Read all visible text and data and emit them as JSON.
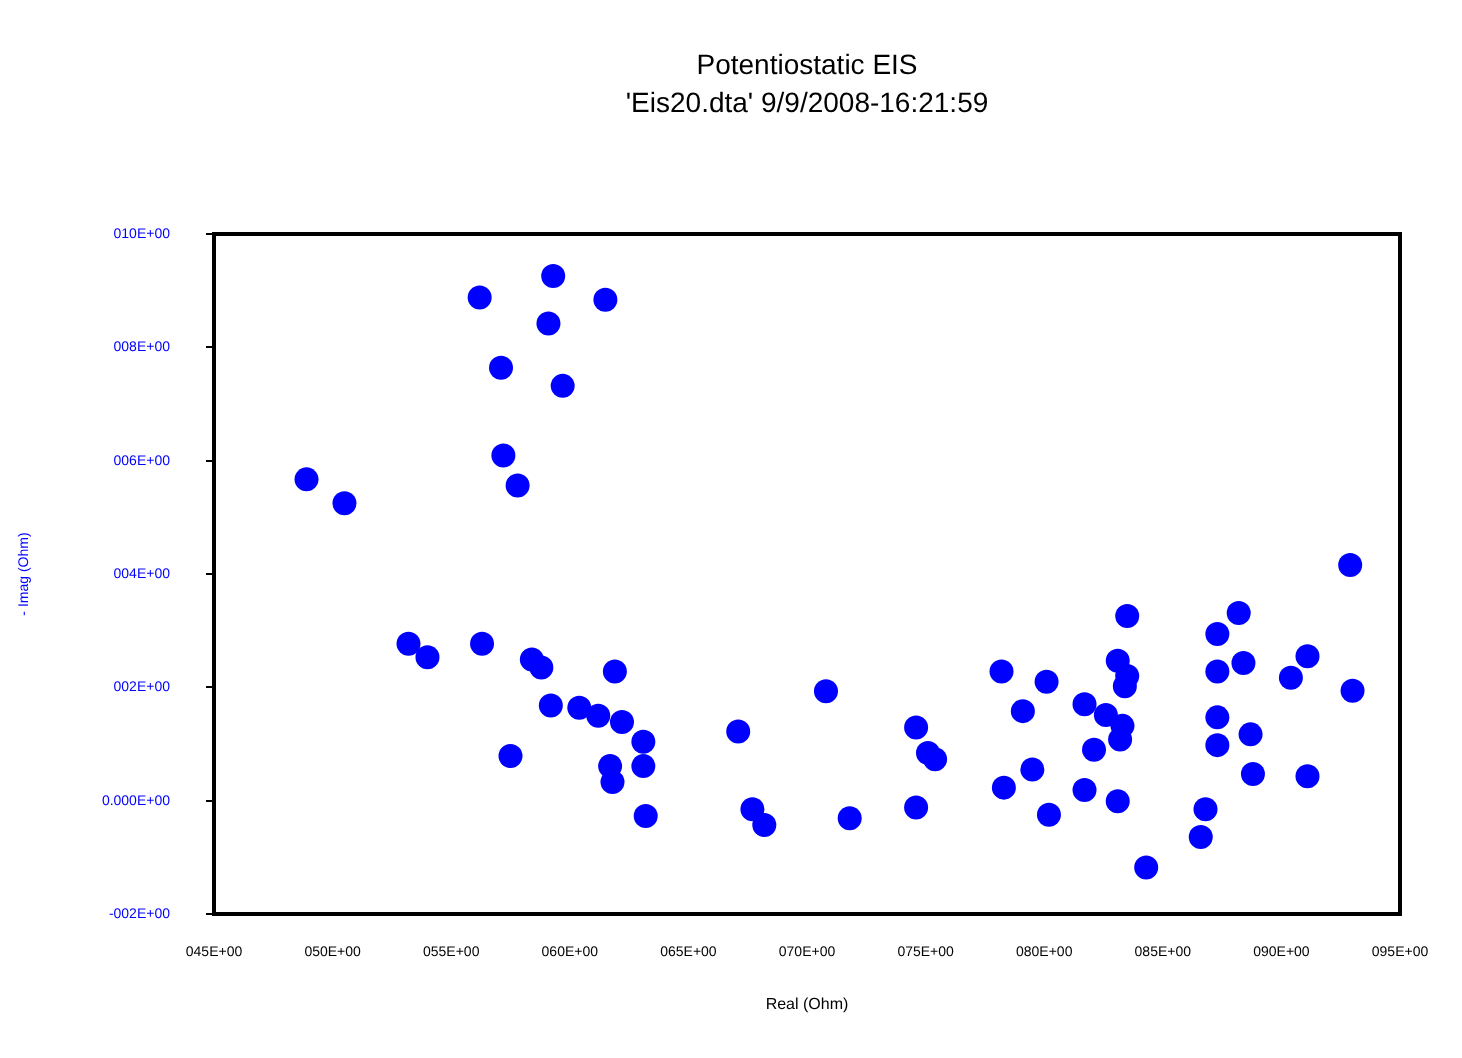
{
  "chart_data": {
    "type": "scatter",
    "title": "Potentiostatic EIS",
    "subtitle": "'Eis20.dta' 9/9/2008-16:21:59",
    "xlabel": "Real (Ohm)",
    "ylabel": "- Imag (Ohm)",
    "x": [
      48.9,
      50.5,
      53.2,
      54.0,
      56.2,
      56.3,
      57.1,
      57.2,
      57.8,
      57.5,
      59.3,
      59.1,
      59.7,
      61.5,
      58.4,
      58.8,
      59.2,
      60.4,
      61.2,
      62.2,
      61.9,
      63.1,
      63.1,
      61.7,
      61.8,
      63.2,
      67.1,
      67.7,
      68.2,
      71.8,
      70.8,
      74.6,
      75.1,
      75.4,
      74.6,
      78.2,
      79.1,
      80.1,
      79.5,
      78.3,
      80.2,
      81.7,
      82.6,
      83.3,
      83.2,
      82.1,
      81.7,
      83.1,
      83.5,
      83.1,
      83.5,
      83.4,
      84.3,
      86.6,
      86.8,
      87.3,
      87.3,
      87.3,
      87.3,
      88.2,
      88.4,
      88.7,
      88.8,
      90.4,
      91.1,
      91.1,
      92.9,
      93.0
    ],
    "series": [
      {
        "color": "#0000ff",
        "values": [
          5.67,
          5.25,
          2.77,
          2.53,
          8.88,
          2.77,
          7.64,
          6.09,
          5.56,
          0.79,
          9.26,
          8.42,
          7.32,
          8.84,
          2.49,
          2.35,
          1.68,
          1.64,
          1.5,
          1.39,
          2.28,
          1.04,
          0.61,
          0.61,
          0.33,
          -0.27,
          1.22,
          -0.15,
          -0.43,
          -0.31,
          1.93,
          1.29,
          0.84,
          0.73,
          -0.12,
          2.28,
          1.58,
          2.1,
          0.55,
          0.23,
          -0.25,
          1.7,
          1.51,
          1.32,
          1.08,
          0.9,
          0.19,
          -0.01,
          3.26,
          2.47,
          2.2,
          2.02,
          -1.18,
          -0.64,
          -0.15,
          2.94,
          2.28,
          1.47,
          0.98,
          3.31,
          2.43,
          1.17,
          0.47,
          2.17,
          2.55,
          0.43,
          4.16,
          1.94
        ]
      }
    ],
    "xlim": [
      45,
      95
    ],
    "xticks": [
      {
        "value": 45,
        "label": "045E+00"
      },
      {
        "value": 50,
        "label": "050E+00"
      },
      {
        "value": 55,
        "label": "055E+00"
      },
      {
        "value": 60,
        "label": "060E+00"
      },
      {
        "value": 65,
        "label": "065E+00"
      },
      {
        "value": 70,
        "label": "070E+00"
      },
      {
        "value": 75,
        "label": "075E+00"
      },
      {
        "value": 80,
        "label": "080E+00"
      },
      {
        "value": 85,
        "label": "085E+00"
      },
      {
        "value": 90,
        "label": "090E+00"
      },
      {
        "value": 95,
        "label": "095E+00"
      }
    ],
    "ylim": [
      -2,
      10
    ],
    "yticks": [
      {
        "value": -2,
        "label": "-002E+00"
      },
      {
        "value": 0,
        "label": "0.000E+00"
      },
      {
        "value": 2,
        "label": "002E+00"
      },
      {
        "value": 4,
        "label": "004E+00"
      },
      {
        "value": 6,
        "label": "006E+00"
      },
      {
        "value": 8,
        "label": "008E+00"
      },
      {
        "value": 10,
        "label": "010E+00"
      }
    ],
    "grid": false,
    "legend": false,
    "marker": "circle"
  }
}
